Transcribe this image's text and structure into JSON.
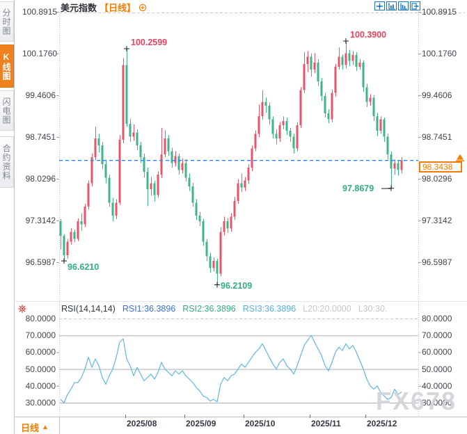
{
  "window": {
    "title": "美元指数",
    "period_tag": "【日线】"
  },
  "colors": {
    "up": "#e8556b",
    "down": "#3eb488",
    "ann_red": "#e8425f",
    "ann_green": "#2fae82",
    "accent": "#f57c00",
    "current_line": "#1e86ff",
    "rsi_line": "#5fb6e8",
    "grid_solid": "#a9aeb8",
    "grid_dash": "#c9cbd3",
    "border": "#bfc2c8",
    "toolbar_blue": "#1677c8",
    "gear_red": "#dd2222",
    "watermark": "#d3d4db"
  },
  "sidebar": {
    "items": [
      {
        "label": "分时图",
        "active": false
      },
      {
        "label": "K线图",
        "active": true
      },
      {
        "label": "闪电图",
        "active": false
      },
      {
        "label": "合约资料",
        "active": false
      }
    ]
  },
  "toolbar": {
    "icons": [
      {
        "name": "pan-crosshair-icon"
      },
      {
        "name": "zoom-axis-y-icon"
      },
      {
        "name": "zoom-axis-x-icon"
      },
      {
        "name": "detach-window-icon"
      }
    ]
  },
  "header_add_icon": "add-indicator-icon",
  "price_axis": {
    "labels": [
      "100.8915",
      "100.1760",
      "99.4606",
      "98.7451",
      "98.0296",
      "97.3142",
      "96.5987"
    ],
    "top_value": 100.8915,
    "step": 0.71545
  },
  "current_price": {
    "label": "98.3438",
    "value": 98.3438
  },
  "annotations": [
    {
      "text": "100.2599",
      "value": 100.2599,
      "candle": 19,
      "kind": "high",
      "color": "#e8425f"
    },
    {
      "text": "100.3900",
      "value": 100.39,
      "candle": 82,
      "kind": "high",
      "color": "#e8425f"
    },
    {
      "text": "96.6210",
      "value": 96.621,
      "candle": 1,
      "kind": "low",
      "color": "#2fae82"
    },
    {
      "text": "96.2109",
      "value": 96.2109,
      "candle": 45,
      "kind": "low",
      "color": "#2fae82"
    },
    {
      "text": "97.8679",
      "value": 97.8679,
      "candle": 95,
      "kind": "low-left",
      "color": "#2fae82"
    }
  ],
  "rsi_panel": {
    "header": [
      {
        "text": "RSI(14,14,14)",
        "color": "#333a42"
      },
      {
        "text": "RSI1:36.3896",
        "color": "#3b6fd8"
      },
      {
        "text": "RSI2:36.3896",
        "color": "#2fae82"
      },
      {
        "text": "RSI3:36.3896",
        "color": "#56aede"
      },
      {
        "text": "L20:20.0000",
        "color": "#c4c6cc"
      },
      {
        "text": "L30:30.",
        "color": "#c4c6cc"
      }
    ],
    "labels": [
      "80.0000",
      "70.0000",
      "60.0000",
      "50.0000",
      "40.0000",
      "30.0000"
    ],
    "solid_levels": [
      70,
      50,
      30
    ],
    "dashed_levels": [
      80
    ],
    "tick_levels": [
      60,
      40
    ]
  },
  "x_axis": {
    "labels": [
      {
        "text": "2025/08",
        "candle": 19
      },
      {
        "text": "2025/09",
        "candle": 36
      },
      {
        "text": "2025/10",
        "candle": 53
      },
      {
        "text": "2025/11",
        "candle": 72
      },
      {
        "text": "2025/12",
        "candle": 88
      }
    ]
  },
  "bottom_bar": {
    "period": "日线",
    "arrow": "▲"
  },
  "watermark": "FX678",
  "chart_data": [
    {
      "type": "candlestick",
      "title": "美元指数 日线",
      "ylabel": "",
      "ylim": [
        96.5987,
        100.8915
      ],
      "y_ticks": [
        100.8915,
        100.176,
        99.4606,
        98.7451,
        98.0296,
        97.3142,
        96.5987
      ],
      "x_tick_labels": [
        "2025/08",
        "2025/09",
        "2025/10",
        "2025/11",
        "2025/12"
      ],
      "last_close": 98.3438,
      "high_marker": 100.39,
      "low_marker": 96.2109,
      "ohlc": [
        [
          97.3,
          97.34,
          96.82,
          97.05
        ],
        [
          97.05,
          97.08,
          96.621,
          96.72
        ],
        [
          96.72,
          97.0,
          96.66,
          96.95
        ],
        [
          96.95,
          97.18,
          96.9,
          97.12
        ],
        [
          97.12,
          97.16,
          96.94,
          97.0
        ],
        [
          97.0,
          97.35,
          96.96,
          97.3
        ],
        [
          97.3,
          97.44,
          97.14,
          97.25
        ],
        [
          97.25,
          97.6,
          97.2,
          97.55
        ],
        [
          97.55,
          98.0,
          97.5,
          97.95
        ],
        [
          97.95,
          98.46,
          97.9,
          98.4
        ],
        [
          98.4,
          98.92,
          98.35,
          98.72
        ],
        [
          98.72,
          98.8,
          98.48,
          98.6
        ],
        [
          98.6,
          98.66,
          98.2,
          98.28
        ],
        [
          98.28,
          98.34,
          97.95,
          98.05
        ],
        [
          98.05,
          98.1,
          97.55,
          97.62
        ],
        [
          97.62,
          97.7,
          97.3,
          97.4
        ],
        [
          97.4,
          97.68,
          97.34,
          97.62
        ],
        [
          97.62,
          98.78,
          97.58,
          98.7
        ],
        [
          98.7,
          100.1,
          98.64,
          99.98
        ],
        [
          99.98,
          100.2599,
          98.92,
          98.97
        ],
        [
          98.97,
          99.06,
          98.66,
          98.75
        ],
        [
          98.75,
          98.96,
          98.68,
          98.82
        ],
        [
          98.82,
          98.88,
          98.52,
          98.6
        ],
        [
          98.6,
          98.66,
          98.3,
          98.4
        ],
        [
          98.4,
          98.46,
          98.05,
          98.15
        ],
        [
          98.15,
          98.22,
          97.56,
          97.85
        ],
        [
          97.85,
          98.06,
          97.74,
          97.95
        ],
        [
          97.95,
          98.0,
          97.64,
          97.75
        ],
        [
          97.75,
          98.16,
          97.7,
          98.1
        ],
        [
          98.1,
          98.9,
          98.04,
          98.45
        ],
        [
          98.45,
          98.86,
          98.4,
          98.72
        ],
        [
          98.72,
          98.78,
          98.42,
          98.5
        ],
        [
          98.5,
          98.56,
          98.22,
          98.3
        ],
        [
          98.3,
          98.5,
          98.24,
          98.42
        ],
        [
          98.42,
          98.46,
          98.1,
          98.18
        ],
        [
          98.18,
          98.38,
          98.12,
          98.3
        ],
        [
          98.3,
          98.36,
          97.98,
          98.05
        ],
        [
          98.05,
          98.12,
          97.82,
          97.9
        ],
        [
          97.9,
          97.96,
          97.55,
          97.62
        ],
        [
          97.62,
          97.68,
          97.32,
          97.4
        ],
        [
          97.4,
          97.46,
          97.22,
          97.3
        ],
        [
          97.3,
          97.34,
          96.88,
          96.95
        ],
        [
          96.95,
          97.0,
          96.62,
          96.7
        ],
        [
          96.7,
          96.76,
          96.42,
          96.5
        ],
        [
          96.5,
          96.68,
          96.44,
          96.62
        ],
        [
          96.62,
          96.66,
          96.2109,
          96.4
        ],
        [
          96.4,
          97.2,
          96.36,
          97.12
        ],
        [
          97.12,
          97.38,
          97.06,
          97.3
        ],
        [
          97.3,
          97.36,
          97.1,
          97.18
        ],
        [
          97.18,
          97.44,
          97.12,
          97.38
        ],
        [
          97.38,
          97.72,
          97.32,
          97.65
        ],
        [
          97.65,
          98.02,
          97.6,
          97.95
        ],
        [
          97.95,
          98.12,
          97.8,
          97.88
        ],
        [
          97.88,
          98.06,
          97.82,
          98.0
        ],
        [
          98.0,
          98.28,
          97.94,
          98.22
        ],
        [
          98.22,
          98.6,
          98.16,
          98.55
        ],
        [
          98.55,
          98.86,
          98.5,
          98.8
        ],
        [
          98.8,
          99.3,
          98.74,
          99.1
        ],
        [
          99.1,
          99.55,
          99.04,
          99.35
        ],
        [
          99.35,
          99.42,
          99.16,
          99.28
        ],
        [
          99.28,
          99.34,
          98.96,
          99.05
        ],
        [
          99.05,
          99.1,
          98.72,
          98.8
        ],
        [
          98.8,
          98.88,
          98.62,
          98.72
        ],
        [
          98.72,
          99.0,
          98.66,
          98.95
        ],
        [
          98.95,
          99.1,
          98.88,
          99.02
        ],
        [
          99.02,
          99.08,
          98.78,
          98.85
        ],
        [
          98.85,
          98.9,
          98.66,
          98.75
        ],
        [
          98.75,
          98.8,
          98.46,
          98.55
        ],
        [
          98.55,
          99.0,
          98.5,
          98.95
        ],
        [
          98.95,
          99.6,
          98.9,
          99.55
        ],
        [
          99.55,
          100.2,
          99.5,
          100.0
        ],
        [
          100.0,
          100.22,
          99.86,
          100.12
        ],
        [
          100.12,
          100.18,
          99.78,
          99.9
        ],
        [
          99.9,
          100.18,
          99.84,
          100.02
        ],
        [
          100.02,
          100.08,
          99.62,
          99.7
        ],
        [
          99.7,
          99.76,
          99.36,
          99.45
        ],
        [
          99.45,
          99.5,
          99.08,
          99.15
        ],
        [
          99.15,
          99.22,
          98.98,
          99.05
        ],
        [
          99.05,
          99.56,
          99.0,
          99.5
        ],
        [
          99.5,
          100.0,
          99.44,
          99.95
        ],
        [
          99.95,
          100.28,
          99.9,
          100.12
        ],
        [
          100.12,
          100.16,
          99.9,
          99.98
        ],
        [
          99.98,
          100.39,
          99.92,
          100.18
        ],
        [
          100.18,
          100.24,
          99.96,
          100.05
        ],
        [
          100.05,
          100.22,
          99.98,
          100.15
        ],
        [
          100.15,
          100.2,
          99.88,
          99.95
        ],
        [
          99.95,
          100.08,
          99.9,
          100.02
        ],
        [
          100.02,
          100.06,
          99.52,
          99.6
        ],
        [
          99.6,
          99.66,
          99.26,
          99.35
        ],
        [
          99.35,
          99.48,
          99.28,
          99.42
        ],
        [
          99.42,
          99.46,
          99.02,
          99.1
        ],
        [
          99.1,
          99.16,
          98.76,
          98.85
        ],
        [
          98.85,
          99.1,
          98.8,
          99.05
        ],
        [
          99.05,
          99.08,
          98.66,
          98.75
        ],
        [
          98.75,
          98.8,
          98.36,
          98.45
        ],
        [
          98.45,
          98.5,
          97.8679,
          98.2
        ],
        [
          98.2,
          98.36,
          98.1,
          98.3
        ],
        [
          98.3,
          98.34,
          98.08,
          98.18
        ],
        [
          98.18,
          98.4,
          98.12,
          98.3438
        ]
      ]
    },
    {
      "type": "line",
      "title": "RSI(14,14,14)",
      "ylim": [
        20,
        85
      ],
      "y_ticks": [
        80,
        70,
        60,
        50,
        40,
        30
      ],
      "legend": [
        "RSI1",
        "RSI2",
        "RSI3"
      ],
      "current": 36.3896,
      "values": [
        32,
        30,
        35,
        38,
        42,
        42,
        45,
        50,
        57,
        51,
        56,
        52,
        45,
        41,
        46,
        50,
        57,
        66,
        68,
        56,
        52,
        46,
        51,
        47,
        43,
        45,
        47,
        44,
        48,
        54,
        50,
        48,
        46,
        49,
        47,
        49,
        46,
        44,
        42,
        39,
        37,
        34,
        33,
        31,
        32,
        30.5,
        41,
        45,
        43,
        46,
        47,
        50,
        53,
        51,
        54,
        57,
        60,
        62,
        65,
        61,
        57,
        53,
        50,
        54,
        56,
        52,
        50,
        47,
        52,
        58,
        64,
        67,
        70,
        66,
        62,
        58,
        52,
        49,
        54,
        60,
        63,
        61,
        65,
        62,
        64,
        60,
        55,
        50,
        44,
        40,
        38,
        40,
        36,
        34,
        32,
        33,
        38,
        35,
        36.39
      ]
    }
  ]
}
